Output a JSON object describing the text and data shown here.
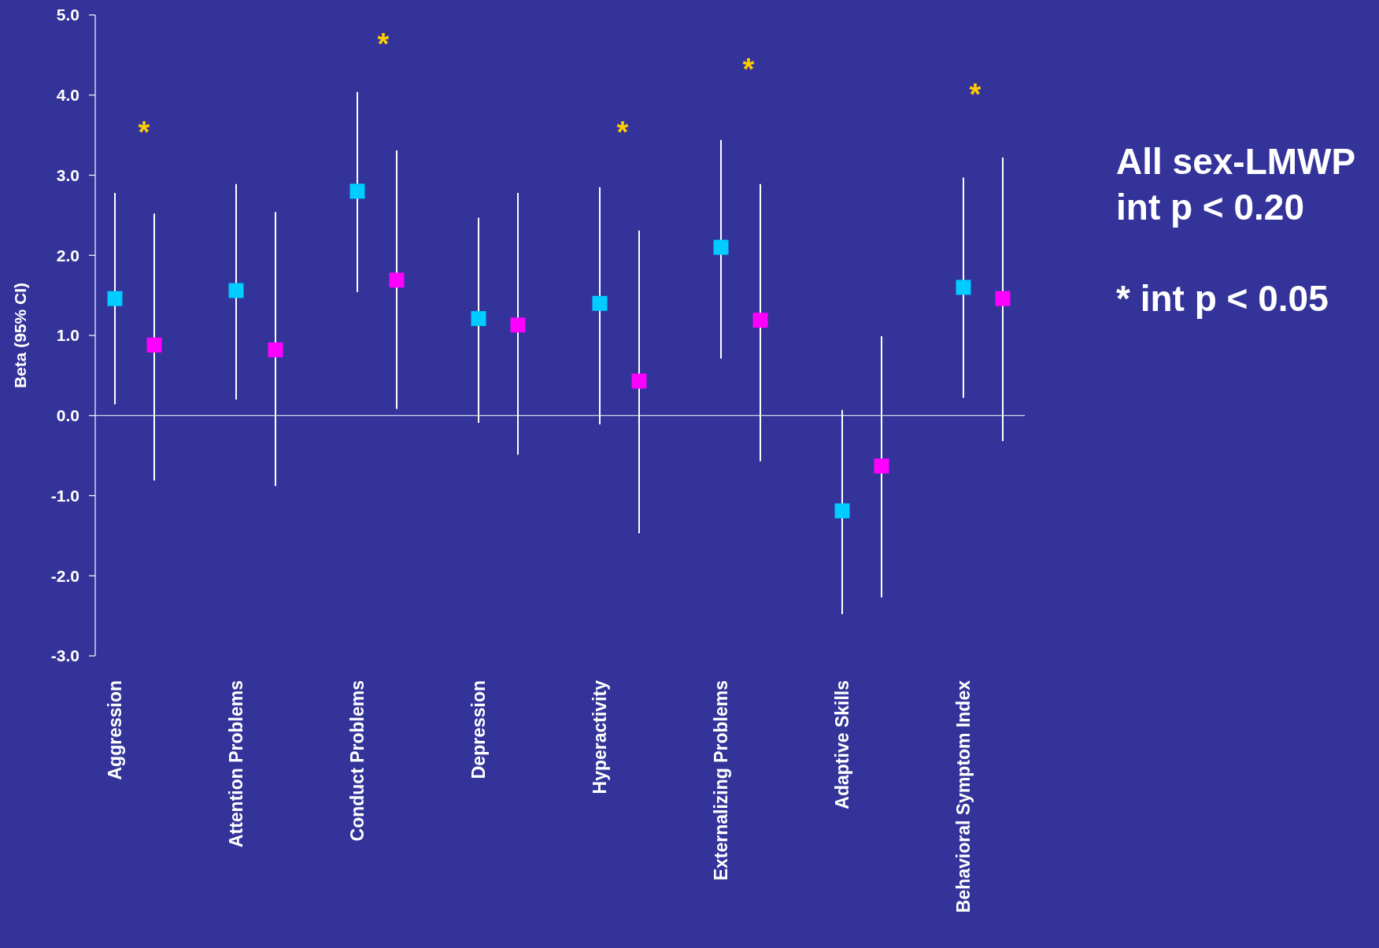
{
  "chart_data": {
    "type": "scatter",
    "ylabel": "Beta (95% CI)",
    "marker": "square",
    "categories": [
      "Aggression",
      "Attention Problems",
      "Conduct Problems",
      "Depression",
      "Hyperactivity",
      "Externalizing Problems",
      "Adaptive Skills",
      "Behavioral Symptom Index"
    ],
    "series": [
      {
        "color": "#00ccff",
        "values": [
          1.46,
          1.56,
          2.8,
          1.21,
          1.4,
          2.1,
          -1.19,
          1.6
        ],
        "errors": [
          [
            0.14,
            2.78
          ],
          [
            0.2,
            2.89
          ],
          [
            1.54,
            4.04
          ],
          [
            -0.09,
            2.47
          ],
          [
            -0.11,
            2.85
          ],
          [
            0.71,
            3.44
          ],
          [
            -2.48,
            0.07
          ],
          [
            0.22,
            2.97
          ]
        ]
      },
      {
        "color": "#ff00ff",
        "values": [
          0.88,
          0.82,
          1.69,
          1.13,
          0.43,
          1.19,
          -0.63,
          1.46
        ],
        "errors": [
          [
            -0.81,
            2.52
          ],
          [
            -0.88,
            2.54
          ],
          [
            0.08,
            3.31
          ],
          [
            -0.49,
            2.78
          ],
          [
            -1.47,
            2.31
          ],
          [
            -0.57,
            2.89
          ],
          [
            -2.27,
            0.99
          ],
          [
            -0.32,
            3.22
          ]
        ]
      }
    ],
    "ylim": [
      -3,
      5
    ],
    "yticks": [
      {
        "value": -3,
        "label": "-3.0"
      },
      {
        "value": -2,
        "label": "-2.0"
      },
      {
        "value": -1,
        "label": "-1.0"
      },
      {
        "value": 0,
        "label": "0.0"
      },
      {
        "value": 1,
        "label": "1.0"
      },
      {
        "value": 2,
        "label": "2.0"
      },
      {
        "value": 3,
        "label": "3.0"
      },
      {
        "value": 4,
        "label": "4.0"
      },
      {
        "value": 5,
        "label": "5.0"
      }
    ],
    "annotations": [
      "*",
      "*",
      "*",
      "*",
      "*",
      "All sex-LMWP",
      "int p < 0.20",
      "* int p < 0.05"
    ]
  }
}
